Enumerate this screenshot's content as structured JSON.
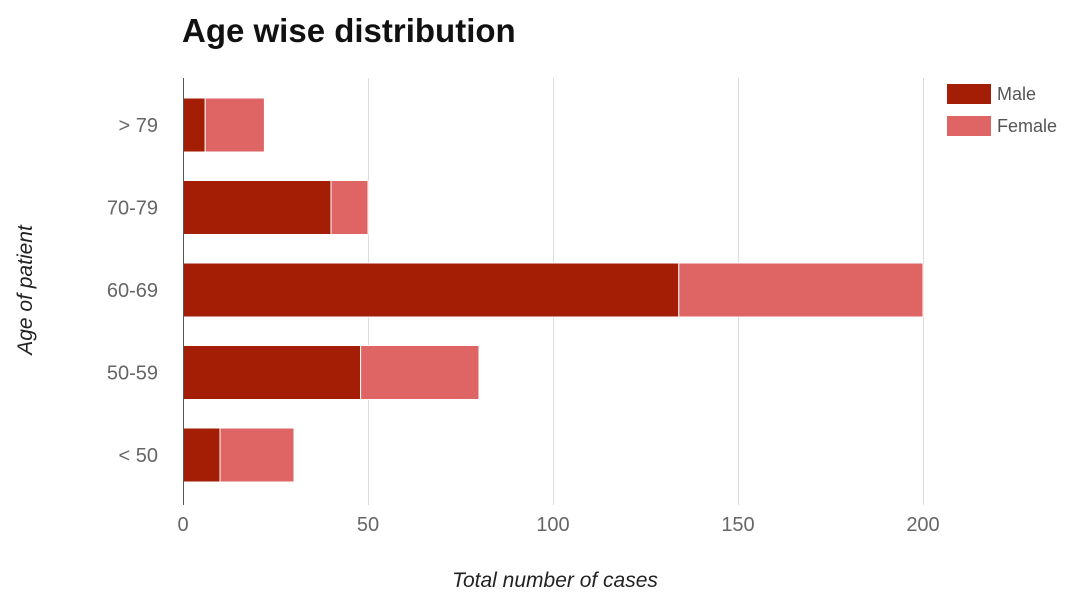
{
  "chart_data": {
    "type": "bar",
    "orientation": "horizontal",
    "stacked": true,
    "title": "Age wise distribution",
    "xlabel": "Total number of cases",
    "ylabel": "Age of patient",
    "categories": [
      "> 79",
      "70-79",
      "60-69",
      "50-59",
      "< 50"
    ],
    "series": [
      {
        "name": "Male",
        "values": [
          6,
          40,
          134,
          48,
          10
        ],
        "color": "#a31e05"
      },
      {
        "name": "Female",
        "values": [
          16,
          10,
          66,
          32,
          20
        ],
        "color": "#df6564"
      }
    ],
    "xlim": [
      0,
      200
    ],
    "xticks": [
      "0",
      "50",
      "100",
      "150",
      "200"
    ],
    "grid": true,
    "legend_position": "top-right"
  }
}
